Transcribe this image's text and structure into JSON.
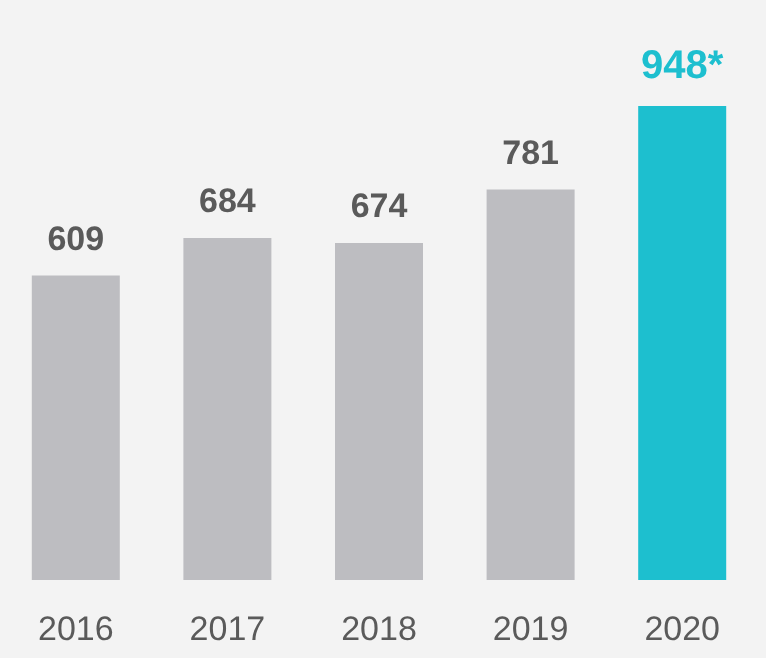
{
  "chart_data": {
    "type": "bar",
    "categories": [
      "2016",
      "2017",
      "2018",
      "2019",
      "2020"
    ],
    "values": [
      609,
      684,
      674,
      781,
      948
    ],
    "colors": [
      "#bdbdc1",
      "#bdbdc1",
      "#bdbdc1",
      "#bdbdc1",
      "#1dbfcf"
    ],
    "value_labels": [
      "609",
      "684",
      "674",
      "781",
      "948*"
    ]
  }
}
